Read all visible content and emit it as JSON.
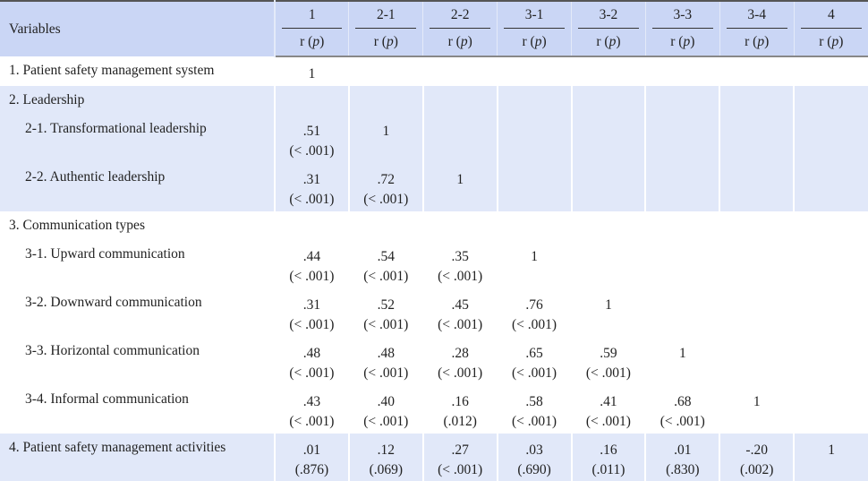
{
  "header": {
    "variables_label": "Variables",
    "columns": [
      "1",
      "2-1",
      "2-2",
      "3-1",
      "3-2",
      "3-3",
      "3-4",
      "4"
    ],
    "sub_label_r": "r (",
    "sub_label_p": "p",
    "sub_label_close": ")"
  },
  "rows": [
    {
      "label": "1. Patient safety management system",
      "indent": false,
      "shaded": false,
      "cells": [
        [
          "1",
          ""
        ]
      ]
    },
    {
      "label": "2. Leadership",
      "indent": false,
      "shaded": true,
      "cells": []
    },
    {
      "label": "2-1. Transformational leadership",
      "indent": true,
      "shaded": true,
      "cells": [
        [
          ".51",
          "(< .001)"
        ],
        [
          "1",
          ""
        ]
      ]
    },
    {
      "label": "2-2. Authentic leadership",
      "indent": true,
      "shaded": true,
      "cells": [
        [
          ".31",
          "(< .001)"
        ],
        [
          ".72",
          "(< .001)"
        ],
        [
          "1",
          ""
        ]
      ]
    },
    {
      "label": "3. Communication types",
      "indent": false,
      "shaded": false,
      "cells": []
    },
    {
      "label": "3-1. Upward communication",
      "indent": true,
      "shaded": false,
      "cells": [
        [
          ".44",
          "(< .001)"
        ],
        [
          ".54",
          "(< .001)"
        ],
        [
          ".35",
          "(< .001)"
        ],
        [
          "1",
          ""
        ]
      ]
    },
    {
      "label": "3-2. Downward communication",
      "indent": true,
      "shaded": false,
      "cells": [
        [
          ".31",
          "(< .001)"
        ],
        [
          ".52",
          "(< .001)"
        ],
        [
          ".45",
          "(< .001)"
        ],
        [
          ".76",
          "(< .001)"
        ],
        [
          "1",
          ""
        ]
      ]
    },
    {
      "label": "3-3. Horizontal communication",
      "indent": true,
      "shaded": false,
      "cells": [
        [
          ".48",
          "(< .001)"
        ],
        [
          ".48",
          "(< .001)"
        ],
        [
          ".28",
          "(< .001)"
        ],
        [
          ".65",
          "(< .001)"
        ],
        [
          ".59",
          "(< .001)"
        ],
        [
          "1",
          ""
        ]
      ]
    },
    {
      "label": "3-4. Informal communication",
      "indent": true,
      "shaded": false,
      "cells": [
        [
          ".43",
          "(< .001)"
        ],
        [
          ".40",
          "(< .001)"
        ],
        [
          ".16",
          "(.012)"
        ],
        [
          ".58",
          "(< .001)"
        ],
        [
          ".41",
          "(< .001)"
        ],
        [
          ".68",
          "(< .001)"
        ],
        [
          "1",
          ""
        ]
      ]
    },
    {
      "label": "4. Patient safety management activities",
      "indent": false,
      "shaded": true,
      "cells": [
        [
          ".01",
          "(.876)"
        ],
        [
          ".12",
          "(.069)"
        ],
        [
          ".27",
          "(< .001)"
        ],
        [
          ".03",
          "(.690)"
        ],
        [
          ".16",
          "(.011)"
        ],
        [
          ".01",
          "(.830)"
        ],
        [
          "-.20",
          "(.002)"
        ],
        [
          "1",
          ""
        ]
      ]
    }
  ],
  "colors": {
    "header_bg": "#cad6f5",
    "shaded_row_bg": "#e1e8f9"
  }
}
